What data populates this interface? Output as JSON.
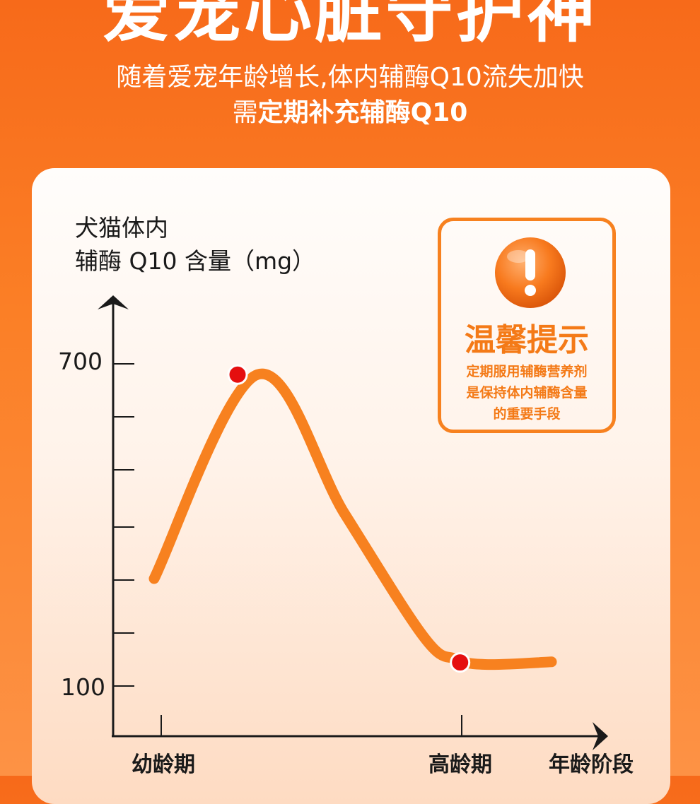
{
  "header": {
    "title": "爱宠心脏守护神",
    "subtitle_line1": "随着爱宠年龄增长,体内辅酶Q10流失加快",
    "subtitle_line2_prefix": "需",
    "subtitle_line2_bold": "定期补充辅酶Q10"
  },
  "tip": {
    "icon": "exclamation-icon",
    "title": "温馨提示",
    "lines": [
      "定期服用辅酶营养剂",
      "是保持体内辅酶含量",
      "的重要手段"
    ]
  },
  "colors": {
    "accent": "#f7811f",
    "marker": "#e50f0f",
    "background": "#f76a1a"
  },
  "chart_data": {
    "type": "line",
    "ylabel_line1": "犬猫体内",
    "ylabel_line2": "辅酶 Q10 含量（mg）",
    "xlabel": "年龄阶段",
    "y_tick_labels": [
      "700",
      "100"
    ],
    "x_tick_labels": [
      "幼龄期",
      "高龄期"
    ],
    "ylim": [
      100,
      700
    ],
    "x": [
      0,
      0.26,
      0.48,
      0.68,
      0.76,
      0.84,
      1
    ],
    "values": [
      300,
      680,
      420,
      190,
      150,
      140,
      145
    ],
    "highlight_points": [
      {
        "x": 0.21,
        "value": 680
      },
      {
        "x": 0.77,
        "value": 144
      }
    ]
  }
}
